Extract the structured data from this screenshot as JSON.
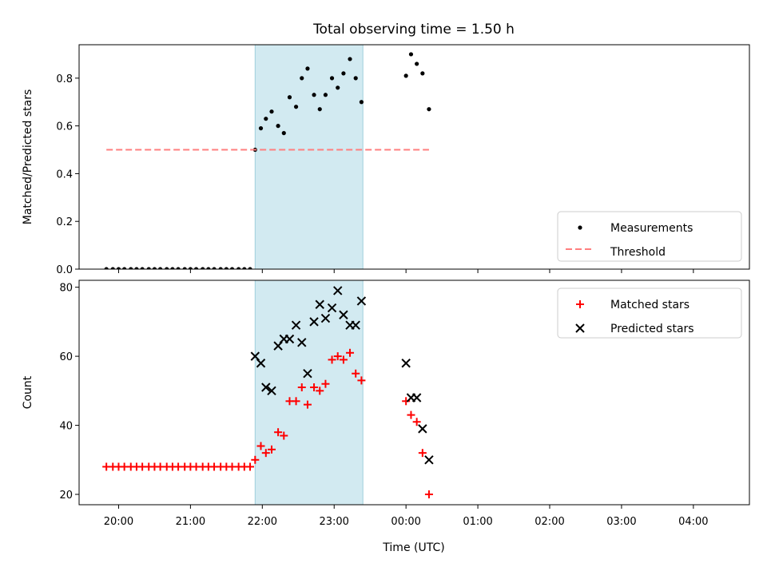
{
  "chart_data": {
    "title": "Total observing time = 1.50 h",
    "xlabel": "Time (UTC)",
    "x_tick_labels": [
      "20:00",
      "21:00",
      "22:00",
      "23:00",
      "00:00",
      "01:00",
      "02:00",
      "03:00",
      "04:00"
    ],
    "x_tick_hours": [
      20,
      21,
      22,
      23,
      24,
      25,
      26,
      27,
      28
    ],
    "xlim_hours": [
      19.45,
      28.78
    ],
    "observing_window_hours": [
      21.9,
      23.4
    ],
    "window_color": "#add8e6",
    "panels": [
      {
        "type": "scatter",
        "ylabel": "Matched/Predicted stars",
        "ylim": [
          0,
          0.94
        ],
        "y_ticks": [
          0.0,
          0.2,
          0.4,
          0.6,
          0.8
        ],
        "y_tick_labels": [
          "0.0",
          "0.2",
          "0.4",
          "0.6",
          "0.8"
        ],
        "legend_position": "lower right",
        "series": [
          {
            "name": "Measurements",
            "marker": "dot",
            "color": "#000000",
            "x": [
              19.83,
              19.92,
              20.0,
              20.08,
              20.17,
              20.25,
              20.33,
              20.42,
              20.5,
              20.58,
              20.67,
              20.75,
              20.83,
              20.92,
              21.0,
              21.08,
              21.17,
              21.25,
              21.33,
              21.42,
              21.5,
              21.58,
              21.67,
              21.75,
              21.83,
              21.9,
              21.98,
              22.05,
              22.13,
              22.22,
              22.3,
              22.38,
              22.47,
              22.55,
              22.63,
              22.72,
              22.8,
              22.88,
              22.97,
              23.05,
              23.13,
              23.22,
              23.3,
              23.38,
              24.0,
              24.07,
              24.15,
              24.23,
              24.32
            ],
            "y": [
              0,
              0,
              0,
              0,
              0,
              0,
              0,
              0,
              0,
              0,
              0,
              0,
              0,
              0,
              0,
              0,
              0,
              0,
              0,
              0,
              0,
              0,
              0,
              0,
              0,
              0.5,
              0.59,
              0.63,
              0.66,
              0.6,
              0.57,
              0.72,
              0.68,
              0.8,
              0.84,
              0.73,
              0.67,
              0.73,
              0.8,
              0.76,
              0.82,
              0.88,
              0.8,
              0.7,
              0.81,
              0.9,
              0.86,
              0.82,
              0.67
            ]
          },
          {
            "name": "Threshold",
            "marker": "dashed-line",
            "color": "#ff7f7f",
            "x": [
              19.83,
              24.32
            ],
            "y": [
              0.5,
              0.5
            ]
          }
        ]
      },
      {
        "type": "scatter",
        "ylabel": "Count",
        "ylim": [
          17,
          82
        ],
        "y_ticks": [
          20,
          40,
          60,
          80
        ],
        "y_tick_labels": [
          "20",
          "40",
          "60",
          "80"
        ],
        "legend_position": "upper right",
        "series": [
          {
            "name": "Matched stars",
            "marker": "plus",
            "color": "#ff0000",
            "x": [
              19.83,
              19.92,
              20.0,
              20.08,
              20.17,
              20.25,
              20.33,
              20.42,
              20.5,
              20.58,
              20.67,
              20.75,
              20.83,
              20.92,
              21.0,
              21.08,
              21.17,
              21.25,
              21.33,
              21.42,
              21.5,
              21.58,
              21.67,
              21.75,
              21.83,
              21.9,
              21.98,
              22.05,
              22.13,
              22.22,
              22.3,
              22.38,
              22.47,
              22.55,
              22.63,
              22.72,
              22.8,
              22.88,
              22.97,
              23.05,
              23.13,
              23.22,
              23.3,
              23.38,
              24.0,
              24.07,
              24.15,
              24.23,
              24.32
            ],
            "y": [
              28,
              28,
              28,
              28,
              28,
              28,
              28,
              28,
              28,
              28,
              28,
              28,
              28,
              28,
              28,
              28,
              28,
              28,
              28,
              28,
              28,
              28,
              28,
              28,
              28,
              30,
              34,
              32,
              33,
              38,
              37,
              47,
              47,
              51,
              46,
              51,
              50,
              52,
              59,
              60,
              59,
              61,
              55,
              53,
              47,
              43,
              41,
              32,
              20
            ]
          },
          {
            "name": "Predicted stars",
            "marker": "x",
            "color": "#000000",
            "x": [
              21.9,
              21.98,
              22.05,
              22.13,
              22.22,
              22.3,
              22.38,
              22.47,
              22.55,
              22.63,
              22.72,
              22.8,
              22.88,
              22.97,
              23.05,
              23.13,
              23.22,
              23.3,
              23.38,
              24.0,
              24.07,
              24.15,
              24.23,
              24.32
            ],
            "y": [
              60,
              58,
              51,
              50,
              63,
              65,
              65,
              69,
              64,
              55,
              70,
              75,
              71,
              74,
              79,
              72,
              69,
              69,
              76,
              58,
              48,
              48,
              39,
              30
            ]
          }
        ]
      }
    ]
  }
}
